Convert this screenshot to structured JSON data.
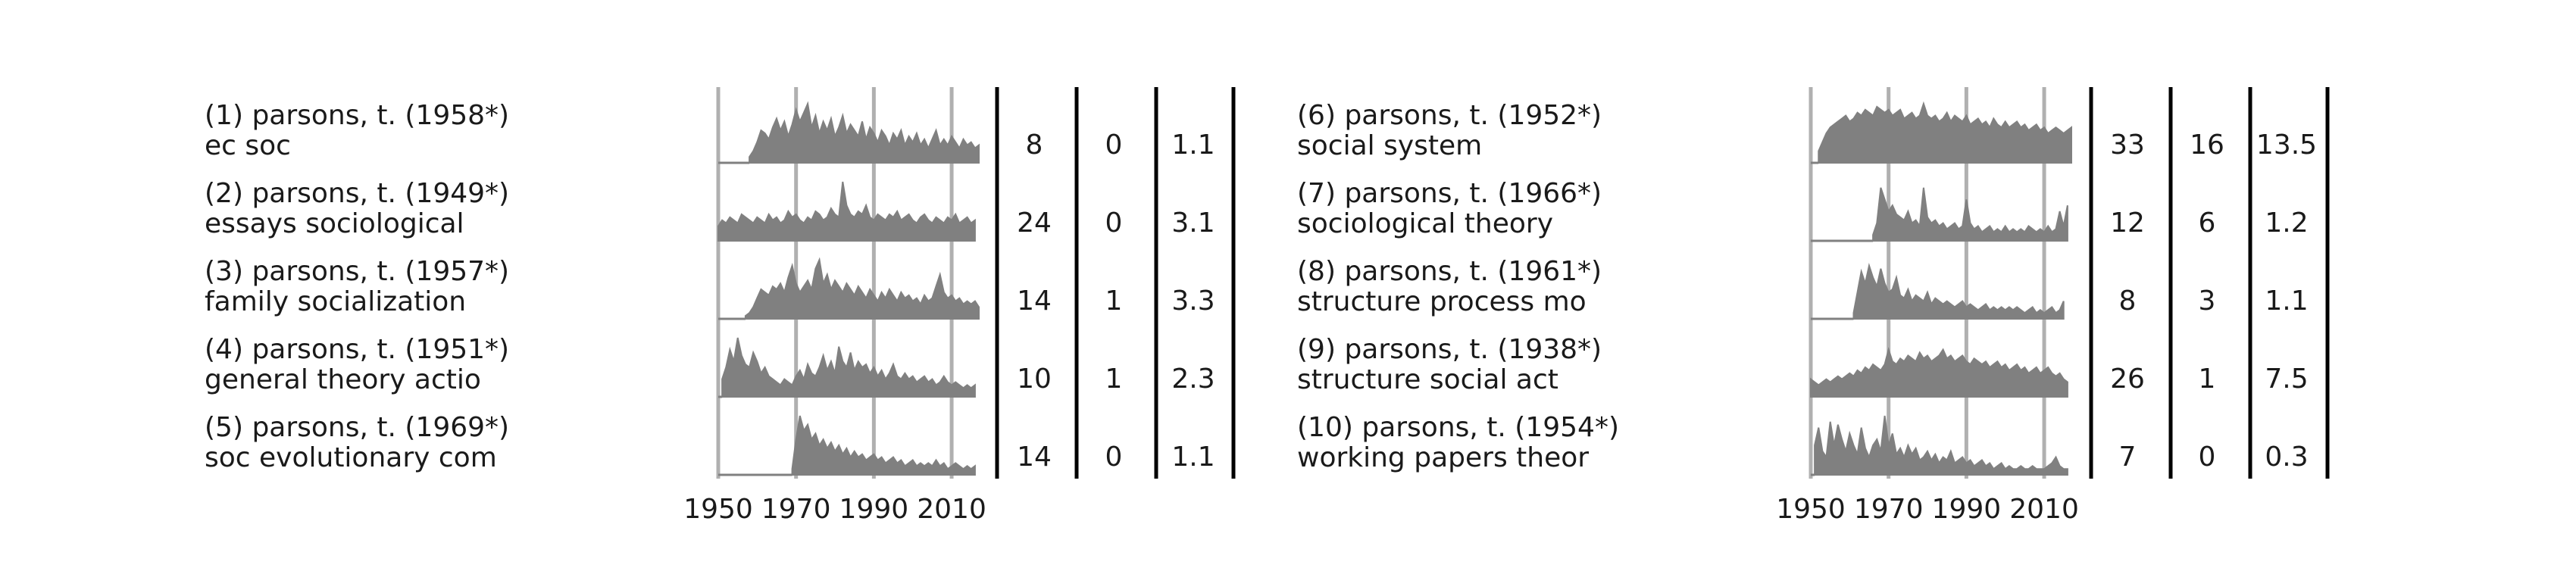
{
  "chart_data": {
    "type": "area",
    "x_ticks": [
      "1950",
      "1970",
      "1990",
      "2010"
    ],
    "xlim": [
      1950,
      2017
    ],
    "colors": {
      "area": "#808080",
      "gridline": "#b0b0b0",
      "divider": "#000000",
      "text": "#1a1a1a"
    },
    "panels": [
      {
        "rows": [
          {
            "label_line1": "(1) parsons, t. (1958*)",
            "label_line2": "ec soc",
            "stat1": "8",
            "stat2": "0",
            "stat3": "1.1",
            "start_year": 1958,
            "values": [
              0.1,
              0.2,
              0.35,
              0.55,
              0.5,
              0.4,
              0.6,
              0.75,
              0.55,
              0.7,
              0.45,
              0.65,
              0.9,
              0.7,
              0.85,
              1.0,
              0.6,
              0.8,
              0.5,
              0.7,
              0.55,
              0.75,
              0.45,
              0.6,
              0.8,
              0.5,
              0.65,
              0.55,
              0.45,
              0.7,
              0.4,
              0.6,
              0.5,
              0.35,
              0.55,
              0.45,
              0.3,
              0.5,
              0.4,
              0.55,
              0.3,
              0.45,
              0.35,
              0.5,
              0.3,
              0.4,
              0.25,
              0.4,
              0.55,
              0.3,
              0.4,
              0.3,
              0.45,
              0.35,
              0.25,
              0.4,
              0.3,
              0.35,
              0.25,
              0.3
            ]
          },
          {
            "label_line1": "(2) parsons, t. (1949*)",
            "label_line2": "essays sociological",
            "stat1": "24",
            "stat2": "0",
            "stat3": "3.1",
            "start_year": 1950,
            "values": [
              0.25,
              0.35,
              0.3,
              0.4,
              0.35,
              0.3,
              0.45,
              0.4,
              0.35,
              0.3,
              0.4,
              0.35,
              0.3,
              0.45,
              0.35,
              0.4,
              0.3,
              0.35,
              0.5,
              0.4,
              0.45,
              0.35,
              0.3,
              0.4,
              0.35,
              0.5,
              0.45,
              0.35,
              0.4,
              0.55,
              0.45,
              0.4,
              1.0,
              0.6,
              0.45,
              0.4,
              0.5,
              0.45,
              0.6,
              0.4,
              0.35,
              0.45,
              0.4,
              0.35,
              0.45,
              0.4,
              0.5,
              0.35,
              0.4,
              0.45,
              0.35,
              0.3,
              0.4,
              0.45,
              0.35,
              0.3,
              0.4,
              0.35,
              0.3,
              0.4,
              0.35,
              0.45,
              0.3,
              0.35,
              0.4,
              0.3,
              0.35
            ]
          },
          {
            "label_line1": "(3) parsons, t. (1957*)",
            "label_line2": "family socialization",
            "stat1": "14",
            "stat2": "1",
            "stat3": "3.3",
            "start_year": 1957,
            "values": [
              0.05,
              0.1,
              0.2,
              0.35,
              0.5,
              0.45,
              0.4,
              0.55,
              0.5,
              0.6,
              0.45,
              0.7,
              0.9,
              0.6,
              0.45,
              0.55,
              0.65,
              0.5,
              0.85,
              1.0,
              0.6,
              0.75,
              0.5,
              0.65,
              0.55,
              0.45,
              0.6,
              0.5,
              0.4,
              0.55,
              0.45,
              0.35,
              0.5,
              0.4,
              0.3,
              0.45,
              0.35,
              0.5,
              0.4,
              0.3,
              0.45,
              0.35,
              0.4,
              0.3,
              0.35,
              0.25,
              0.4,
              0.3,
              0.35,
              0.55,
              0.75,
              0.45,
              0.35,
              0.4,
              0.3,
              0.35,
              0.25,
              0.3,
              0.25,
              0.3,
              0.2
            ]
          },
          {
            "label_line1": "(4) parsons, t. (1951*)",
            "label_line2": "general theory actio",
            "stat1": "10",
            "stat2": "1",
            "stat3": "2.3",
            "start_year": 1951,
            "values": [
              0.3,
              0.5,
              0.8,
              0.6,
              1.0,
              0.7,
              0.55,
              0.5,
              0.75,
              0.6,
              0.4,
              0.5,
              0.35,
              0.3,
              0.25,
              0.2,
              0.3,
              0.25,
              0.2,
              0.35,
              0.45,
              0.3,
              0.55,
              0.4,
              0.35,
              0.5,
              0.7,
              0.45,
              0.6,
              0.4,
              0.85,
              0.6,
              0.5,
              0.75,
              0.45,
              0.6,
              0.5,
              0.55,
              0.4,
              0.5,
              0.35,
              0.45,
              0.3,
              0.4,
              0.55,
              0.35,
              0.3,
              0.4,
              0.3,
              0.35,
              0.25,
              0.3,
              0.35,
              0.25,
              0.3,
              0.2,
              0.25,
              0.35,
              0.25,
              0.2,
              0.25,
              0.2,
              0.15,
              0.2,
              0.15,
              0.2
            ]
          },
          {
            "label_line1": "(5) parsons, t. (1969*)",
            "label_line2": "soc evolutionary com",
            "stat1": "14",
            "stat2": "0",
            "stat3": "1.1",
            "start_year": 1969,
            "values": [
              0.1,
              0.6,
              1.0,
              0.75,
              0.85,
              0.6,
              0.7,
              0.5,
              0.6,
              0.45,
              0.55,
              0.4,
              0.5,
              0.35,
              0.45,
              0.3,
              0.4,
              0.3,
              0.35,
              0.25,
              0.3,
              0.35,
              0.25,
              0.3,
              0.2,
              0.25,
              0.3,
              0.2,
              0.25,
              0.15,
              0.2,
              0.25,
              0.15,
              0.2,
              0.15,
              0.2,
              0.15,
              0.25,
              0.15,
              0.2,
              0.1,
              0.15,
              0.2,
              0.15,
              0.1,
              0.15,
              0.1,
              0.15
            ]
          }
        ]
      },
      {
        "rows": [
          {
            "label_line1": "(6) parsons, t. (1952*)",
            "label_line2": "social system",
            "stat1": "33",
            "stat2": "16",
            "stat3": "13.5",
            "start_year": 1952,
            "values": [
              0.2,
              0.35,
              0.5,
              0.6,
              0.65,
              0.7,
              0.75,
              0.8,
              0.7,
              0.75,
              0.85,
              0.8,
              0.9,
              0.85,
              0.8,
              0.95,
              0.9,
              0.85,
              0.9,
              0.8,
              0.85,
              0.9,
              0.75,
              0.8,
              0.85,
              0.75,
              0.8,
              1.0,
              0.8,
              0.75,
              0.8,
              0.7,
              0.75,
              0.85,
              0.7,
              0.8,
              0.75,
              0.7,
              0.8,
              0.65,
              0.7,
              0.75,
              0.65,
              0.7,
              0.6,
              0.75,
              0.65,
              0.6,
              0.7,
              0.6,
              0.65,
              0.7,
              0.6,
              0.65,
              0.55,
              0.6,
              0.65,
              0.55,
              0.6,
              0.5,
              0.55,
              0.6,
              0.55,
              0.5,
              0.55,
              0.6
            ]
          },
          {
            "label_line1": "(7) parsons, t. (1966*)",
            "label_line2": "sociological theory",
            "stat1": "12",
            "stat2": "6",
            "stat3": "1.2",
            "start_year": 1966,
            "values": [
              0.1,
              0.3,
              0.9,
              0.7,
              0.5,
              0.6,
              0.45,
              0.4,
              0.35,
              0.5,
              0.3,
              0.35,
              0.25,
              0.9,
              0.4,
              0.3,
              0.35,
              0.25,
              0.3,
              0.2,
              0.25,
              0.3,
              0.2,
              0.25,
              0.7,
              0.3,
              0.2,
              0.25,
              0.15,
              0.2,
              0.25,
              0.15,
              0.2,
              0.15,
              0.25,
              0.15,
              0.2,
              0.15,
              0.2,
              0.15,
              0.25,
              0.2,
              0.15,
              0.2,
              0.15,
              0.25,
              0.15,
              0.2,
              0.5,
              0.25,
              0.6
            ]
          },
          {
            "label_line1": "(8) parsons, t. (1961*)",
            "label_line2": "structure process mo",
            "stat1": "8",
            "stat2": "3",
            "stat3": "1.1",
            "start_year": 1961,
            "values": [
              0.1,
              0.45,
              0.8,
              0.6,
              0.9,
              0.7,
              0.55,
              0.85,
              0.6,
              0.45,
              0.5,
              0.7,
              0.4,
              0.35,
              0.5,
              0.3,
              0.4,
              0.35,
              0.3,
              0.45,
              0.25,
              0.35,
              0.3,
              0.25,
              0.3,
              0.25,
              0.2,
              0.25,
              0.3,
              0.2,
              0.25,
              0.2,
              0.15,
              0.2,
              0.25,
              0.15,
              0.2,
              0.15,
              0.2,
              0.15,
              0.2,
              0.15,
              0.2,
              0.15,
              0.1,
              0.15,
              0.2,
              0.1,
              0.15,
              0.1,
              0.15,
              0.2,
              0.1,
              0.15,
              0.3
            ]
          },
          {
            "label_line1": "(9) parsons, t. (1938*)",
            "label_line2": "structure social act",
            "stat1": "26",
            "stat2": "1",
            "stat3": "7.5",
            "start_year": 1950,
            "values": [
              0.3,
              0.25,
              0.2,
              0.25,
              0.3,
              0.25,
              0.3,
              0.35,
              0.3,
              0.35,
              0.4,
              0.35,
              0.45,
              0.4,
              0.5,
              0.45,
              0.55,
              0.5,
              0.45,
              0.55,
              0.8,
              0.6,
              0.55,
              0.65,
              0.6,
              0.7,
              0.65,
              0.6,
              0.75,
              0.65,
              0.7,
              0.6,
              0.65,
              0.7,
              0.8,
              0.65,
              0.7,
              0.6,
              0.65,
              0.7,
              0.6,
              0.55,
              0.65,
              0.6,
              0.55,
              0.6,
              0.5,
              0.55,
              0.6,
              0.5,
              0.55,
              0.45,
              0.5,
              0.55,
              0.45,
              0.5,
              0.4,
              0.45,
              0.5,
              0.4,
              0.45,
              0.5,
              0.4,
              0.35,
              0.4,
              0.3,
              0.25
            ]
          },
          {
            "label_line1": "(10) parsons, t. (1954*)",
            "label_line2": "working papers theor",
            "stat1": "7",
            "stat2": "0",
            "stat3": "0.3",
            "start_year": 1951,
            "values": [
              0.5,
              0.8,
              0.4,
              0.3,
              0.9,
              0.5,
              0.85,
              0.6,
              0.4,
              0.7,
              0.5,
              0.35,
              0.8,
              0.45,
              0.3,
              0.5,
              0.6,
              0.4,
              1.0,
              0.5,
              0.7,
              0.35,
              0.45,
              0.3,
              0.5,
              0.35,
              0.45,
              0.25,
              0.3,
              0.4,
              0.25,
              0.35,
              0.2,
              0.3,
              0.25,
              0.4,
              0.2,
              0.25,
              0.3,
              0.2,
              0.25,
              0.15,
              0.2,
              0.25,
              0.15,
              0.2,
              0.1,
              0.15,
              0.2,
              0.1,
              0.15,
              0.1,
              0.1,
              0.15,
              0.1,
              0.1,
              0.15,
              0.1,
              0.1,
              0.1,
              0.15,
              0.2,
              0.3,
              0.15,
              0.1,
              0.1
            ]
          }
        ]
      }
    ]
  }
}
